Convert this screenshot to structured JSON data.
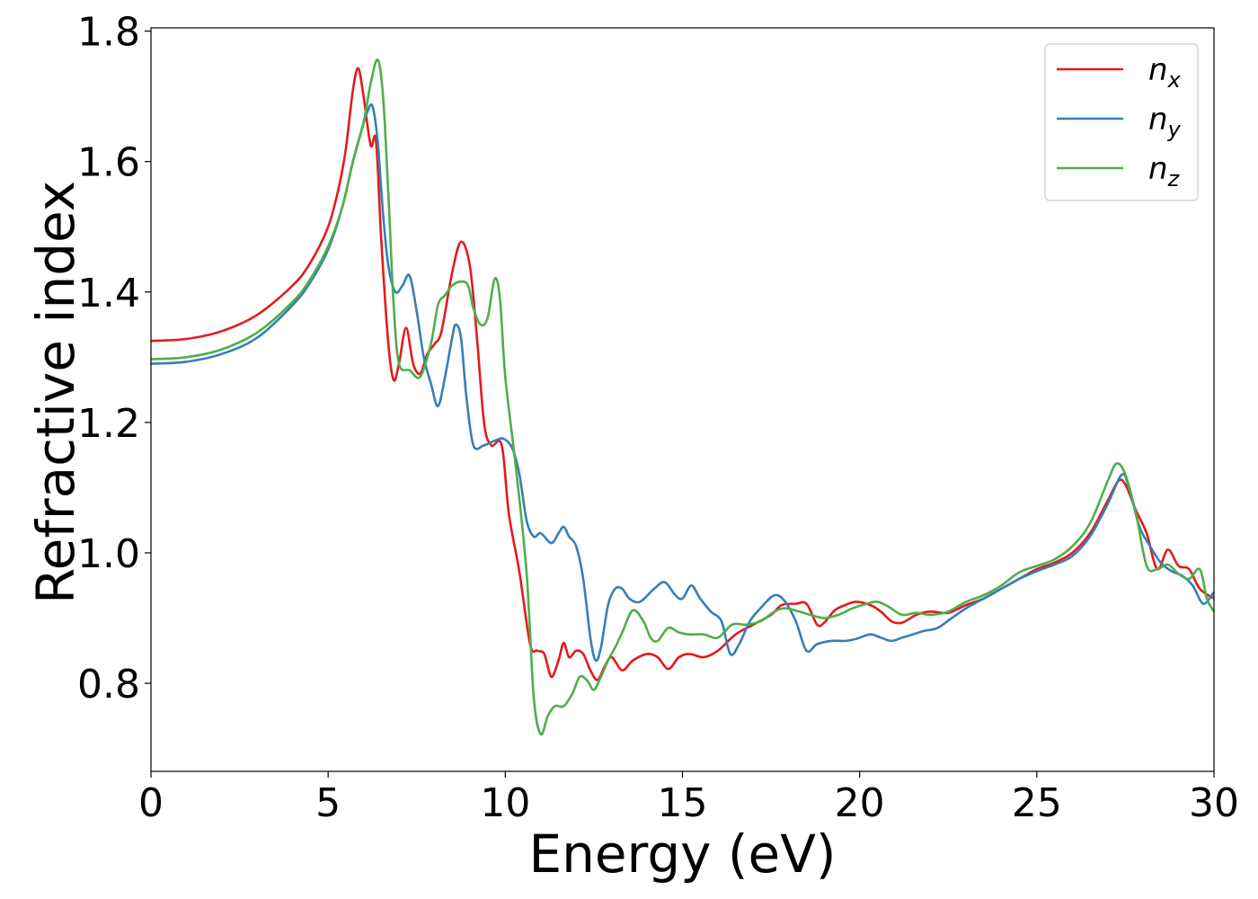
{
  "chart_data": {
    "type": "line",
    "xlabel": "Energy (eV)",
    "ylabel": "Refractive index",
    "xlim": [
      0,
      30
    ],
    "ylim": [
      0.665,
      1.805
    ],
    "x_ticks": [
      0,
      5,
      10,
      15,
      20,
      25,
      30
    ],
    "x_tick_labels": [
      "0",
      "5",
      "10",
      "15",
      "20",
      "25",
      "30"
    ],
    "y_ticks": [
      0.8,
      1.0,
      1.2,
      1.4,
      1.6,
      1.8
    ],
    "y_tick_labels": [
      "0.8",
      "1.0",
      "1.2",
      "1.4",
      "1.6",
      "1.8"
    ],
    "grid": false,
    "legend_position": "top-right",
    "series": [
      {
        "name": "n",
        "subscript": "x",
        "color": "#e41a1c",
        "points": [
          [
            0,
            1.325
          ],
          [
            1,
            1.328
          ],
          [
            2,
            1.34
          ],
          [
            3,
            1.365
          ],
          [
            4,
            1.41
          ],
          [
            4.5,
            1.445
          ],
          [
            5,
            1.5
          ],
          [
            5.3,
            1.56
          ],
          [
            5.5,
            1.62
          ],
          [
            5.7,
            1.71
          ],
          [
            5.85,
            1.743
          ],
          [
            6.0,
            1.7
          ],
          [
            6.2,
            1.625
          ],
          [
            6.35,
            1.632
          ],
          [
            6.5,
            1.48
          ],
          [
            6.7,
            1.32
          ],
          [
            6.85,
            1.265
          ],
          [
            7.0,
            1.29
          ],
          [
            7.2,
            1.345
          ],
          [
            7.4,
            1.29
          ],
          [
            7.6,
            1.275
          ],
          [
            7.8,
            1.305
          ],
          [
            8.0,
            1.32
          ],
          [
            8.2,
            1.34
          ],
          [
            8.5,
            1.43
          ],
          [
            8.75,
            1.477
          ],
          [
            9.0,
            1.44
          ],
          [
            9.2,
            1.33
          ],
          [
            9.4,
            1.2
          ],
          [
            9.6,
            1.165
          ],
          [
            9.9,
            1.165
          ],
          [
            10.1,
            1.06
          ],
          [
            10.4,
            0.97
          ],
          [
            10.7,
            0.86
          ],
          [
            10.9,
            0.85
          ],
          [
            11.1,
            0.845
          ],
          [
            11.3,
            0.81
          ],
          [
            11.5,
            0.835
          ],
          [
            11.65,
            0.862
          ],
          [
            11.8,
            0.84
          ],
          [
            12.0,
            0.85
          ],
          [
            12.2,
            0.845
          ],
          [
            12.4,
            0.82
          ],
          [
            12.6,
            0.805
          ],
          [
            12.8,
            0.825
          ],
          [
            13.0,
            0.84
          ],
          [
            13.3,
            0.82
          ],
          [
            13.6,
            0.835
          ],
          [
            14.0,
            0.845
          ],
          [
            14.3,
            0.84
          ],
          [
            14.6,
            0.822
          ],
          [
            14.9,
            0.84
          ],
          [
            15.2,
            0.845
          ],
          [
            15.6,
            0.84
          ],
          [
            16.0,
            0.85
          ],
          [
            16.5,
            0.875
          ],
          [
            17.0,
            0.89
          ],
          [
            17.5,
            0.905
          ],
          [
            17.8,
            0.92
          ],
          [
            18.2,
            0.922
          ],
          [
            18.5,
            0.922
          ],
          [
            18.8,
            0.89
          ],
          [
            19.0,
            0.893
          ],
          [
            19.3,
            0.912
          ],
          [
            19.6,
            0.92
          ],
          [
            19.9,
            0.925
          ],
          [
            20.3,
            0.92
          ],
          [
            20.6,
            0.91
          ],
          [
            20.9,
            0.895
          ],
          [
            21.2,
            0.893
          ],
          [
            21.6,
            0.905
          ],
          [
            22.0,
            0.91
          ],
          [
            22.5,
            0.908
          ],
          [
            23.0,
            0.92
          ],
          [
            23.5,
            0.93
          ],
          [
            24.0,
            0.945
          ],
          [
            24.5,
            0.96
          ],
          [
            25.0,
            0.975
          ],
          [
            25.5,
            0.985
          ],
          [
            26.0,
            1.0
          ],
          [
            26.5,
            1.03
          ],
          [
            27.0,
            1.08
          ],
          [
            27.3,
            1.11
          ],
          [
            27.5,
            1.105
          ],
          [
            27.8,
            1.065
          ],
          [
            28.1,
            1.03
          ],
          [
            28.4,
            0.975
          ],
          [
            28.7,
            1.005
          ],
          [
            29.0,
            0.98
          ],
          [
            29.3,
            0.975
          ],
          [
            29.6,
            0.945
          ],
          [
            30.0,
            0.93
          ]
        ]
      },
      {
        "name": "n",
        "subscript": "y",
        "color": "#377eb8",
        "points": [
          [
            0,
            1.29
          ],
          [
            1,
            1.293
          ],
          [
            2,
            1.305
          ],
          [
            3,
            1.33
          ],
          [
            4,
            1.38
          ],
          [
            4.5,
            1.415
          ],
          [
            5,
            1.465
          ],
          [
            5.4,
            1.53
          ],
          [
            5.7,
            1.6
          ],
          [
            5.9,
            1.64
          ],
          [
            6.1,
            1.675
          ],
          [
            6.25,
            1.685
          ],
          [
            6.4,
            1.63
          ],
          [
            6.55,
            1.52
          ],
          [
            6.7,
            1.44
          ],
          [
            6.9,
            1.4
          ],
          [
            7.1,
            1.41
          ],
          [
            7.3,
            1.425
          ],
          [
            7.5,
            1.37
          ],
          [
            7.7,
            1.3
          ],
          [
            7.9,
            1.26
          ],
          [
            8.1,
            1.225
          ],
          [
            8.3,
            1.27
          ],
          [
            8.5,
            1.33
          ],
          [
            8.6,
            1.35
          ],
          [
            8.75,
            1.33
          ],
          [
            8.9,
            1.24
          ],
          [
            9.1,
            1.165
          ],
          [
            9.4,
            1.165
          ],
          [
            9.7,
            1.172
          ],
          [
            9.95,
            1.175
          ],
          [
            10.2,
            1.16
          ],
          [
            10.4,
            1.12
          ],
          [
            10.6,
            1.05
          ],
          [
            10.8,
            1.025
          ],
          [
            11.0,
            1.03
          ],
          [
            11.3,
            1.015
          ],
          [
            11.5,
            1.03
          ],
          [
            11.65,
            1.04
          ],
          [
            11.8,
            1.025
          ],
          [
            12.0,
            1.01
          ],
          [
            12.2,
            0.96
          ],
          [
            12.4,
            0.87
          ],
          [
            12.55,
            0.835
          ],
          [
            12.7,
            0.855
          ],
          [
            12.9,
            0.92
          ],
          [
            13.1,
            0.945
          ],
          [
            13.3,
            0.945
          ],
          [
            13.5,
            0.93
          ],
          [
            13.8,
            0.925
          ],
          [
            14.2,
            0.945
          ],
          [
            14.5,
            0.955
          ],
          [
            14.8,
            0.935
          ],
          [
            15.0,
            0.93
          ],
          [
            15.25,
            0.95
          ],
          [
            15.5,
            0.93
          ],
          [
            15.8,
            0.91
          ],
          [
            16.1,
            0.895
          ],
          [
            16.35,
            0.845
          ],
          [
            16.6,
            0.86
          ],
          [
            16.9,
            0.895
          ],
          [
            17.2,
            0.915
          ],
          [
            17.6,
            0.935
          ],
          [
            17.9,
            0.925
          ],
          [
            18.2,
            0.895
          ],
          [
            18.5,
            0.85
          ],
          [
            18.8,
            0.86
          ],
          [
            19.2,
            0.865
          ],
          [
            19.6,
            0.865
          ],
          [
            19.9,
            0.868
          ],
          [
            20.3,
            0.875
          ],
          [
            20.6,
            0.87
          ],
          [
            20.9,
            0.865
          ],
          [
            21.2,
            0.87
          ],
          [
            21.5,
            0.875
          ],
          [
            21.8,
            0.88
          ],
          [
            22.2,
            0.885
          ],
          [
            22.6,
            0.9
          ],
          [
            23.0,
            0.915
          ],
          [
            23.5,
            0.93
          ],
          [
            24.0,
            0.945
          ],
          [
            24.5,
            0.96
          ],
          [
            25.0,
            0.972
          ],
          [
            25.5,
            0.982
          ],
          [
            26.0,
            0.995
          ],
          [
            26.5,
            1.025
          ],
          [
            27.0,
            1.075
          ],
          [
            27.4,
            1.12
          ],
          [
            27.6,
            1.1
          ],
          [
            27.9,
            1.04
          ],
          [
            28.2,
            1.01
          ],
          [
            28.5,
            0.985
          ],
          [
            28.8,
            0.972
          ],
          [
            29.1,
            0.965
          ],
          [
            29.4,
            0.95
          ],
          [
            29.7,
            0.922
          ],
          [
            30.0,
            0.94
          ]
        ]
      },
      {
        "name": "n",
        "subscript": "z",
        "color": "#4daf4a",
        "points": [
          [
            0,
            1.297
          ],
          [
            1,
            1.3
          ],
          [
            2,
            1.312
          ],
          [
            3,
            1.338
          ],
          [
            4,
            1.385
          ],
          [
            4.5,
            1.42
          ],
          [
            5,
            1.47
          ],
          [
            5.4,
            1.53
          ],
          [
            5.7,
            1.6
          ],
          [
            6.0,
            1.66
          ],
          [
            6.2,
            1.72
          ],
          [
            6.4,
            1.756
          ],
          [
            6.55,
            1.7
          ],
          [
            6.7,
            1.55
          ],
          [
            6.85,
            1.38
          ],
          [
            7.0,
            1.29
          ],
          [
            7.3,
            1.28
          ],
          [
            7.6,
            1.27
          ],
          [
            7.9,
            1.32
          ],
          [
            8.1,
            1.38
          ],
          [
            8.3,
            1.395
          ],
          [
            8.5,
            1.41
          ],
          [
            8.75,
            1.416
          ],
          [
            8.95,
            1.41
          ],
          [
            9.1,
            1.375
          ],
          [
            9.3,
            1.35
          ],
          [
            9.5,
            1.36
          ],
          [
            9.7,
            1.42
          ],
          [
            9.85,
            1.39
          ],
          [
            10.0,
            1.27
          ],
          [
            10.3,
            1.13
          ],
          [
            10.6,
            0.97
          ],
          [
            10.8,
            0.78
          ],
          [
            11.0,
            0.722
          ],
          [
            11.2,
            0.75
          ],
          [
            11.4,
            0.765
          ],
          [
            11.65,
            0.765
          ],
          [
            11.9,
            0.785
          ],
          [
            12.1,
            0.81
          ],
          [
            12.3,
            0.805
          ],
          [
            12.5,
            0.79
          ],
          [
            12.7,
            0.81
          ],
          [
            12.9,
            0.835
          ],
          [
            13.1,
            0.855
          ],
          [
            13.3,
            0.878
          ],
          [
            13.6,
            0.912
          ],
          [
            13.9,
            0.895
          ],
          [
            14.1,
            0.87
          ],
          [
            14.3,
            0.865
          ],
          [
            14.6,
            0.885
          ],
          [
            14.9,
            0.878
          ],
          [
            15.2,
            0.875
          ],
          [
            15.6,
            0.875
          ],
          [
            16.0,
            0.87
          ],
          [
            16.4,
            0.89
          ],
          [
            16.8,
            0.89
          ],
          [
            17.2,
            0.895
          ],
          [
            17.6,
            0.91
          ],
          [
            17.9,
            0.915
          ],
          [
            18.3,
            0.91
          ],
          [
            18.6,
            0.905
          ],
          [
            19.0,
            0.9
          ],
          [
            19.4,
            0.905
          ],
          [
            19.8,
            0.915
          ],
          [
            20.2,
            0.922
          ],
          [
            20.5,
            0.925
          ],
          [
            20.8,
            0.918
          ],
          [
            21.2,
            0.905
          ],
          [
            21.6,
            0.908
          ],
          [
            22.0,
            0.905
          ],
          [
            22.5,
            0.91
          ],
          [
            23.0,
            0.925
          ],
          [
            23.5,
            0.935
          ],
          [
            24.0,
            0.95
          ],
          [
            24.5,
            0.97
          ],
          [
            25.0,
            0.98
          ],
          [
            25.5,
            0.99
          ],
          [
            26.0,
            1.01
          ],
          [
            26.5,
            1.045
          ],
          [
            27.0,
            1.11
          ],
          [
            27.25,
            1.137
          ],
          [
            27.5,
            1.12
          ],
          [
            27.8,
            1.06
          ],
          [
            28.1,
            0.98
          ],
          [
            28.4,
            0.975
          ],
          [
            28.7,
            0.982
          ],
          [
            29.0,
            0.968
          ],
          [
            29.3,
            0.96
          ],
          [
            29.6,
            0.975
          ],
          [
            29.8,
            0.93
          ],
          [
            30.0,
            0.91
          ]
        ]
      }
    ]
  }
}
